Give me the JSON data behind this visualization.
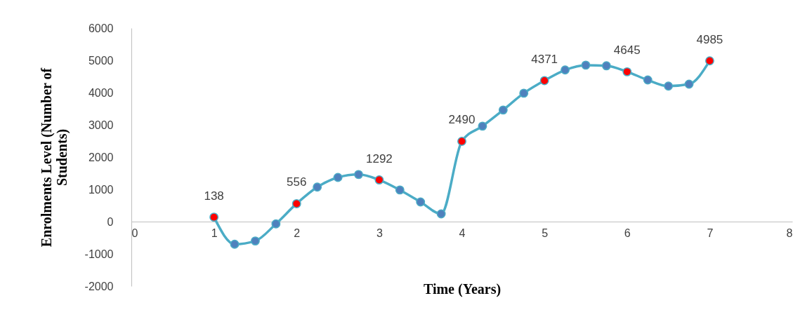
{
  "chart_data": {
    "type": "line",
    "xlabel": "Time (Years)",
    "ylabel": "Enrolments Level (Number of Students)",
    "xlim": [
      0,
      8
    ],
    "xticks": [
      0,
      1,
      2,
      3,
      4,
      5,
      6,
      7,
      8
    ],
    "ylim": [
      -2000,
      6000
    ],
    "yticks": [
      -2000,
      -1000,
      0,
      1000,
      2000,
      3000,
      4000,
      5000,
      6000
    ],
    "grid": false,
    "series": [
      {
        "type": "line",
        "color": "#4bacc6",
        "x": [
          1,
          1.25,
          1.5,
          1.75,
          2,
          2.25,
          2.5,
          2.75,
          3,
          3.25,
          3.5,
          3.75,
          4,
          4.25,
          4.5,
          4.75,
          5,
          5.25,
          5.5,
          5.75,
          6,
          6.25,
          6.5,
          6.75,
          7
        ],
        "values": [
          138,
          -700,
          -600,
          -70,
          556,
          1070,
          1370,
          1460,
          1292,
          980,
          610,
          240,
          2490,
          2960,
          3460,
          3980,
          4371,
          4700,
          4850,
          4830,
          4645,
          4390,
          4200,
          4260,
          4985
        ]
      },
      {
        "type": "scatter",
        "color": "#4f81bd",
        "x": [
          1.25,
          1.5,
          1.75,
          2.25,
          2.5,
          2.75,
          3.25,
          3.5,
          3.75,
          4.25,
          4.5,
          4.75,
          5.25,
          5.5,
          5.75,
          6.25,
          6.5,
          6.75
        ],
        "values": [
          -700,
          -600,
          -70,
          1070,
          1370,
          1460,
          980,
          610,
          240,
          2960,
          3460,
          3980,
          4700,
          4850,
          4830,
          4390,
          4200,
          4260
        ]
      },
      {
        "type": "scatter",
        "color": "#ff0000",
        "x": [
          1,
          2,
          3,
          4,
          5,
          6,
          7
        ],
        "values": [
          138,
          556,
          1292,
          2490,
          4371,
          4645,
          4985
        ],
        "value_labels": [
          "138",
          "556",
          "1292",
          "2490",
          "4371",
          "4645",
          "4985"
        ]
      }
    ]
  }
}
